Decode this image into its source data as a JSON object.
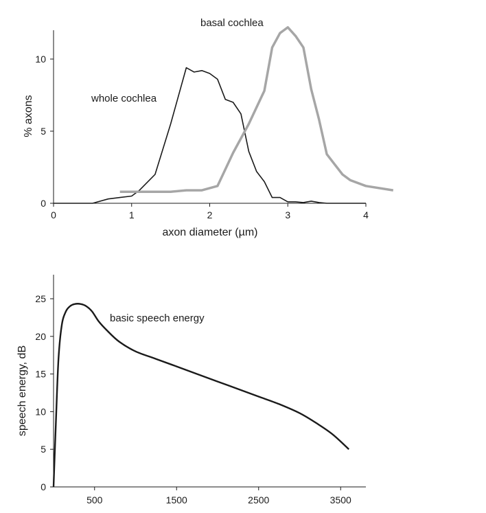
{
  "chart_data": [
    {
      "type": "line",
      "xlabel": "axon diameter (µm)",
      "ylabel": "% axons",
      "xlim": [
        0,
        4
      ],
      "ylim": [
        0,
        12
      ],
      "x_ticks": [
        "0",
        "1",
        "2",
        "3",
        "4"
      ],
      "y_ticks": [
        "0",
        "5",
        "10"
      ],
      "series": [
        {
          "name": "whole cochlea",
          "color": "#1a1a1a",
          "x": [
            0,
            0.5,
            0.7,
            0.85,
            1.0,
            1.1,
            1.3,
            1.5,
            1.7,
            1.8,
            1.9,
            2.0,
            2.1,
            2.2,
            2.3,
            2.4,
            2.5,
            2.6,
            2.7,
            2.8,
            2.9,
            3.0,
            3.1,
            3.2,
            3.3,
            3.4,
            3.5,
            4.0
          ],
          "y": [
            0,
            0,
            0.3,
            0.4,
            0.5,
            0.9,
            2.0,
            5.5,
            9.4,
            9.1,
            9.2,
            9.0,
            8.6,
            7.2,
            7.0,
            6.2,
            3.6,
            2.2,
            1.5,
            0.4,
            0.4,
            0.1,
            0.1,
            0.05,
            0.15,
            0.05,
            0,
            0
          ]
        },
        {
          "name": "basal cochlea",
          "color": "#a6a6a6",
          "x": [
            0.85,
            1.0,
            1.5,
            1.7,
            1.9,
            2.1,
            2.3,
            2.5,
            2.7,
            2.8,
            2.9,
            2.95,
            3.0,
            3.1,
            3.2,
            3.3,
            3.4,
            3.5,
            3.6,
            3.7,
            3.8,
            4.0,
            4.35
          ],
          "y": [
            0.8,
            0.8,
            0.8,
            0.9,
            0.9,
            1.2,
            3.5,
            5.5,
            7.8,
            10.8,
            11.8,
            12.0,
            12.2,
            11.6,
            10.8,
            7.9,
            5.8,
            3.4,
            2.7,
            2.0,
            1.6,
            1.2,
            0.9
          ]
        }
      ]
    },
    {
      "type": "line",
      "xlabel": "",
      "ylabel": "speech energy, dB",
      "xlim": [
        0,
        3800
      ],
      "ylim": [
        0,
        28
      ],
      "x_ticks": [
        "500",
        "1500",
        "2500",
        "3500"
      ],
      "y_ticks": [
        "0",
        "5",
        "10",
        "15",
        "20",
        "25"
      ],
      "series": [
        {
          "name": "basic speech energy",
          "color": "#1a1a1a",
          "x": [
            0,
            30,
            60,
            100,
            150,
            200,
            260,
            330,
            400,
            470,
            550,
            650,
            800,
            1000,
            1250,
            1500,
            1750,
            2000,
            2250,
            2500,
            2750,
            3000,
            3200,
            3400,
            3600
          ],
          "y": [
            0,
            9,
            17,
            21.5,
            23.3,
            24.0,
            24.3,
            24.3,
            24.0,
            23.3,
            22.0,
            20.8,
            19.3,
            18.0,
            17.0,
            16.0,
            15.0,
            14.0,
            13.0,
            12.0,
            11.0,
            9.8,
            8.5,
            7.0,
            5.0
          ]
        }
      ]
    }
  ]
}
